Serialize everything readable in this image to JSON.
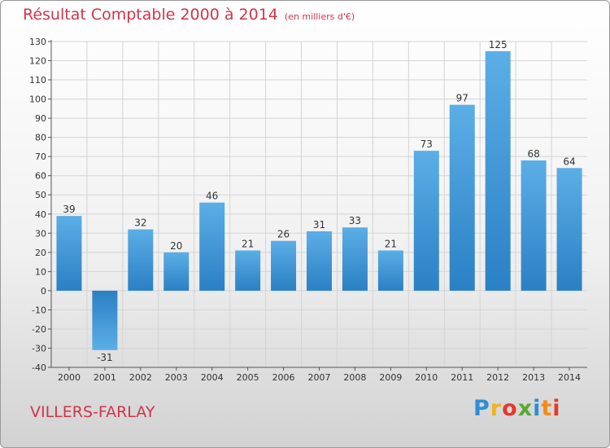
{
  "chart_data": {
    "type": "bar",
    "title": "Résultat Comptable 2000 à 2014",
    "unit_note": "(en milliers d'€)",
    "categories": [
      "2000",
      "2001",
      "2002",
      "2003",
      "2004",
      "2005",
      "2006",
      "2007",
      "2008",
      "2009",
      "2010",
      "2011",
      "2012",
      "2013",
      "2014"
    ],
    "values": [
      39,
      -31,
      32,
      20,
      46,
      21,
      26,
      31,
      33,
      21,
      73,
      97,
      125,
      68,
      64
    ],
    "ylim": [
      -40,
      130
    ],
    "yticks": [
      130,
      120,
      110,
      100,
      90,
      80,
      70,
      60,
      50,
      40,
      30,
      20,
      10,
      0,
      -10,
      -20,
      -30,
      -40
    ],
    "grid": true,
    "xlabel": "",
    "ylabel": ""
  },
  "location": "VILLERS-FARLAY",
  "brand": {
    "letters": [
      "P",
      "r",
      "o",
      "x",
      "i",
      "t",
      "i"
    ],
    "colors": [
      "#2e8ed6",
      "#f2b21b",
      "#e8372a",
      "#5aa832",
      "#2e8ed6",
      "#f28a1b",
      "#e8372a"
    ]
  },
  "colors": {
    "title": "#d0354b",
    "bar_top": "#5caee6",
    "bar_bottom": "#2a80c4",
    "grid": "#d4d4d4"
  }
}
